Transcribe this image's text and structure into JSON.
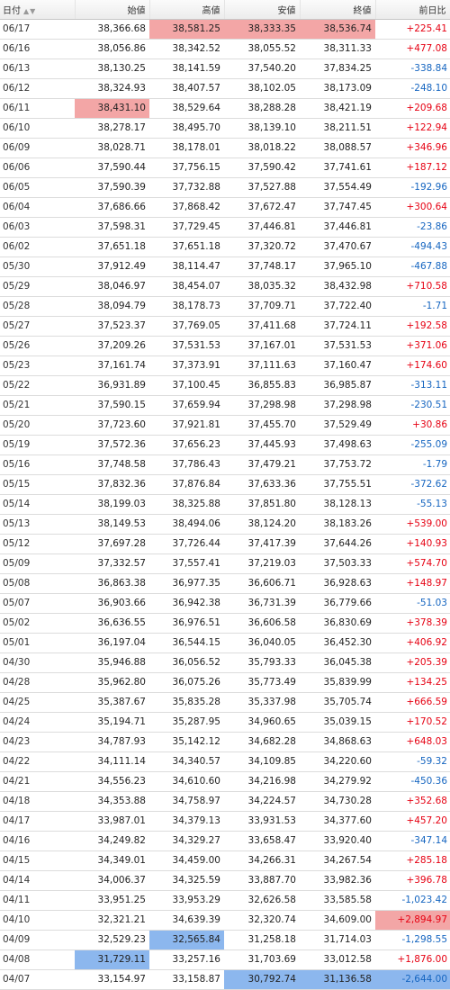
{
  "header": {
    "date": "日付",
    "open": "始値",
    "high": "高値",
    "low": "安値",
    "close": "終値",
    "change": "前日比",
    "sort_icon": "sort-arrows-icon"
  },
  "colors": {
    "up": "#e60012",
    "down": "#1565c0",
    "highlight_max": "#f3a6a6",
    "highlight_min": "#8cb7ee"
  },
  "rows": [
    {
      "date": "06/17",
      "open": "38,366.68",
      "high": "38,581.25",
      "low": "38,333.35",
      "close": "38,536.74",
      "change": "+225.41"
    },
    {
      "date": "06/16",
      "open": "38,056.86",
      "high": "38,342.52",
      "low": "38,055.52",
      "close": "38,311.33",
      "change": "+477.08"
    },
    {
      "date": "06/13",
      "open": "38,130.25",
      "high": "38,141.59",
      "low": "37,540.20",
      "close": "37,834.25",
      "change": "-338.84"
    },
    {
      "date": "06/12",
      "open": "38,324.93",
      "high": "38,407.57",
      "low": "38,102.05",
      "close": "38,173.09",
      "change": "-248.10"
    },
    {
      "date": "06/11",
      "open": "38,431.10",
      "high": "38,529.64",
      "low": "38,288.28",
      "close": "38,421.19",
      "change": "+209.68"
    },
    {
      "date": "06/10",
      "open": "38,278.17",
      "high": "38,495.70",
      "low": "38,139.10",
      "close": "38,211.51",
      "change": "+122.94"
    },
    {
      "date": "06/09",
      "open": "38,028.71",
      "high": "38,178.01",
      "low": "38,018.22",
      "close": "38,088.57",
      "change": "+346.96"
    },
    {
      "date": "06/06",
      "open": "37,590.44",
      "high": "37,756.15",
      "low": "37,590.42",
      "close": "37,741.61",
      "change": "+187.12"
    },
    {
      "date": "06/05",
      "open": "37,590.39",
      "high": "37,732.88",
      "low": "37,527.88",
      "close": "37,554.49",
      "change": "-192.96"
    },
    {
      "date": "06/04",
      "open": "37,686.66",
      "high": "37,868.42",
      "low": "37,672.47",
      "close": "37,747.45",
      "change": "+300.64"
    },
    {
      "date": "06/03",
      "open": "37,598.31",
      "high": "37,729.45",
      "low": "37,446.81",
      "close": "37,446.81",
      "change": "-23.86"
    },
    {
      "date": "06/02",
      "open": "37,651.18",
      "high": "37,651.18",
      "low": "37,320.72",
      "close": "37,470.67",
      "change": "-494.43"
    },
    {
      "date": "05/30",
      "open": "37,912.49",
      "high": "38,114.47",
      "low": "37,748.17",
      "close": "37,965.10",
      "change": "-467.88"
    },
    {
      "date": "05/29",
      "open": "38,046.97",
      "high": "38,454.07",
      "low": "38,035.32",
      "close": "38,432.98",
      "change": "+710.58"
    },
    {
      "date": "05/28",
      "open": "38,094.79",
      "high": "38,178.73",
      "low": "37,709.71",
      "close": "37,722.40",
      "change": "-1.71"
    },
    {
      "date": "05/27",
      "open": "37,523.37",
      "high": "37,769.05",
      "low": "37,411.68",
      "close": "37,724.11",
      "change": "+192.58"
    },
    {
      "date": "05/26",
      "open": "37,209.26",
      "high": "37,531.53",
      "low": "37,167.01",
      "close": "37,531.53",
      "change": "+371.06"
    },
    {
      "date": "05/23",
      "open": "37,161.74",
      "high": "37,373.91",
      "low": "37,111.63",
      "close": "37,160.47",
      "change": "+174.60"
    },
    {
      "date": "05/22",
      "open": "36,931.89",
      "high": "37,100.45",
      "low": "36,855.83",
      "close": "36,985.87",
      "change": "-313.11"
    },
    {
      "date": "05/21",
      "open": "37,590.15",
      "high": "37,659.94",
      "low": "37,298.98",
      "close": "37,298.98",
      "change": "-230.51"
    },
    {
      "date": "05/20",
      "open": "37,723.60",
      "high": "37,921.81",
      "low": "37,455.70",
      "close": "37,529.49",
      "change": "+30.86"
    },
    {
      "date": "05/19",
      "open": "37,572.36",
      "high": "37,656.23",
      "low": "37,445.93",
      "close": "37,498.63",
      "change": "-255.09"
    },
    {
      "date": "05/16",
      "open": "37,748.58",
      "high": "37,786.43",
      "low": "37,479.21",
      "close": "37,753.72",
      "change": "-1.79"
    },
    {
      "date": "05/15",
      "open": "37,832.36",
      "high": "37,876.84",
      "low": "37,633.36",
      "close": "37,755.51",
      "change": "-372.62"
    },
    {
      "date": "05/14",
      "open": "38,199.03",
      "high": "38,325.88",
      "low": "37,851.80",
      "close": "38,128.13",
      "change": "-55.13"
    },
    {
      "date": "05/13",
      "open": "38,149.53",
      "high": "38,494.06",
      "low": "38,124.20",
      "close": "38,183.26",
      "change": "+539.00"
    },
    {
      "date": "05/12",
      "open": "37,697.28",
      "high": "37,726.44",
      "low": "37,417.39",
      "close": "37,644.26",
      "change": "+140.93"
    },
    {
      "date": "05/09",
      "open": "37,332.57",
      "high": "37,557.41",
      "low": "37,219.03",
      "close": "37,503.33",
      "change": "+574.70"
    },
    {
      "date": "05/08",
      "open": "36,863.38",
      "high": "36,977.35",
      "low": "36,606.71",
      "close": "36,928.63",
      "change": "+148.97"
    },
    {
      "date": "05/07",
      "open": "36,903.66",
      "high": "36,942.38",
      "low": "36,731.39",
      "close": "36,779.66",
      "change": "-51.03"
    },
    {
      "date": "05/02",
      "open": "36,636.55",
      "high": "36,976.51",
      "low": "36,606.58",
      "close": "36,830.69",
      "change": "+378.39"
    },
    {
      "date": "05/01",
      "open": "36,197.04",
      "high": "36,544.15",
      "low": "36,040.05",
      "close": "36,452.30",
      "change": "+406.92"
    },
    {
      "date": "04/30",
      "open": "35,946.88",
      "high": "36,056.52",
      "low": "35,793.33",
      "close": "36,045.38",
      "change": "+205.39"
    },
    {
      "date": "04/28",
      "open": "35,962.80",
      "high": "36,075.26",
      "low": "35,773.49",
      "close": "35,839.99",
      "change": "+134.25"
    },
    {
      "date": "04/25",
      "open": "35,387.67",
      "high": "35,835.28",
      "low": "35,337.98",
      "close": "35,705.74",
      "change": "+666.59"
    },
    {
      "date": "04/24",
      "open": "35,194.71",
      "high": "35,287.95",
      "low": "34,960.65",
      "close": "35,039.15",
      "change": "+170.52"
    },
    {
      "date": "04/23",
      "open": "34,787.93",
      "high": "35,142.12",
      "low": "34,682.28",
      "close": "34,868.63",
      "change": "+648.03"
    },
    {
      "date": "04/22",
      "open": "34,111.14",
      "high": "34,340.57",
      "low": "34,109.85",
      "close": "34,220.60",
      "change": "-59.32"
    },
    {
      "date": "04/21",
      "open": "34,556.23",
      "high": "34,610.60",
      "low": "34,216.98",
      "close": "34,279.92",
      "change": "-450.36"
    },
    {
      "date": "04/18",
      "open": "34,353.88",
      "high": "34,758.97",
      "low": "34,224.57",
      "close": "34,730.28",
      "change": "+352.68"
    },
    {
      "date": "04/17",
      "open": "33,987.01",
      "high": "34,379.13",
      "low": "33,931.53",
      "close": "34,377.60",
      "change": "+457.20"
    },
    {
      "date": "04/16",
      "open": "34,249.82",
      "high": "34,329.27",
      "low": "33,658.47",
      "close": "33,920.40",
      "change": "-347.14"
    },
    {
      "date": "04/15",
      "open": "34,349.01",
      "high": "34,459.00",
      "low": "34,266.31",
      "close": "34,267.54",
      "change": "+285.18"
    },
    {
      "date": "04/14",
      "open": "34,006.37",
      "high": "34,325.59",
      "low": "33,887.70",
      "close": "33,982.36",
      "change": "+396.78"
    },
    {
      "date": "04/11",
      "open": "33,951.25",
      "high": "33,953.29",
      "low": "32,626.58",
      "close": "33,585.58",
      "change": "-1,023.42"
    },
    {
      "date": "04/10",
      "open": "32,321.21",
      "high": "34,639.39",
      "low": "32,320.74",
      "close": "34,609.00",
      "change": "+2,894.97"
    },
    {
      "date": "04/09",
      "open": "32,529.23",
      "high": "32,565.84",
      "low": "31,258.18",
      "close": "31,714.03",
      "change": "-1,298.55"
    },
    {
      "date": "04/08",
      "open": "31,729.11",
      "high": "33,257.16",
      "low": "31,703.69",
      "close": "33,012.58",
      "change": "+1,876.00"
    },
    {
      "date": "04/07",
      "open": "33,154.97",
      "high": "33,158.87",
      "low": "30,792.74",
      "close": "31,136.58",
      "change": "-2,644.00"
    }
  ]
}
